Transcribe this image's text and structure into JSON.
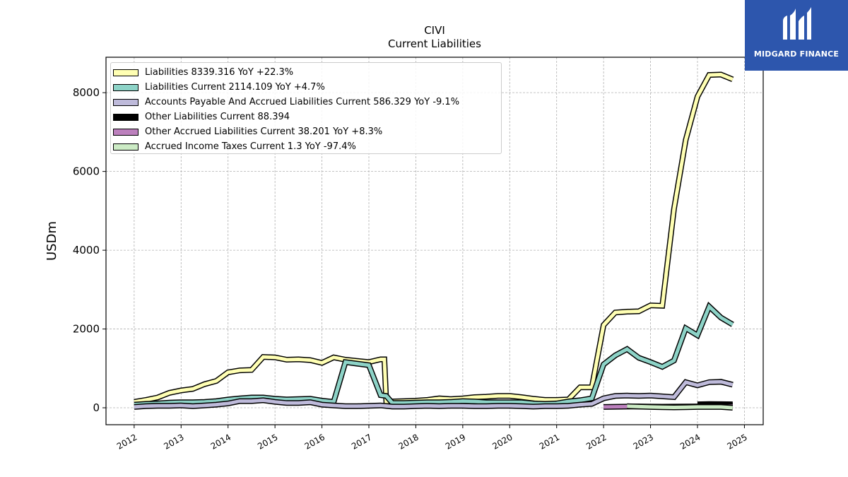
{
  "chart_data": {
    "type": "line",
    "title": "CIVI",
    "subtitle": "Current  Liabilities",
    "ylabel": "USDm",
    "xlim": [
      2011.4,
      2025.4
    ],
    "ylim": [
      -430,
      8900
    ],
    "x_ticks": [
      "2012",
      "2013",
      "2014",
      "2015",
      "2016",
      "2017",
      "2018",
      "2019",
      "2020",
      "2021",
      "2022",
      "2023",
      "2024",
      "2025"
    ],
    "y_ticks": [
      "0",
      "2000",
      "4000",
      "6000",
      "8000"
    ],
    "grid": true,
    "legend_position": "top-left",
    "series": [
      {
        "name": "Liabilities  8339.316 YoY +22.3%",
        "color": "#ffffb3",
        "x": [
          2012.0,
          2012.25,
          2012.5,
          2012.75,
          2013.0,
          2013.25,
          2013.5,
          2013.75,
          2014.0,
          2014.25,
          2014.5,
          2014.75,
          2015.0,
          2015.25,
          2015.5,
          2015.75,
          2016.0,
          2016.25,
          2016.5,
          2016.75,
          2017.0,
          2017.25,
          2017.33,
          2017.37,
          2017.5,
          2017.75,
          2018.0,
          2018.25,
          2018.5,
          2018.75,
          2019.0,
          2019.25,
          2019.5,
          2019.75,
          2020.0,
          2020.25,
          2020.5,
          2020.75,
          2021.0,
          2021.25,
          2021.5,
          2021.75,
          2022.0,
          2022.25,
          2022.5,
          2022.75,
          2023.0,
          2023.25,
          2023.5,
          2023.75,
          2024.0,
          2024.25,
          2024.5,
          2024.75
        ],
        "y": [
          150,
          200,
          260,
          380,
          440,
          480,
          600,
          680,
          900,
          950,
          960,
          1290,
          1280,
          1220,
          1230,
          1210,
          1140,
          1280,
          1220,
          1190,
          1160,
          1230,
          1230,
          160,
          160,
          170,
          180,
          200,
          240,
          220,
          240,
          270,
          280,
          300,
          300,
          270,
          230,
          200,
          200,
          210,
          520,
          520,
          2100,
          2420,
          2440,
          2450,
          2600,
          2590,
          5050,
          6800,
          7900,
          8450,
          8460,
          8339
        ]
      },
      {
        "name": "Liabilities Current  2114.109 YoY +4.7%",
        "color": "#8dd3c7",
        "x": [
          2012.0,
          2012.25,
          2012.5,
          2012.75,
          2013.0,
          2013.25,
          2013.5,
          2013.75,
          2014.0,
          2014.25,
          2014.5,
          2014.75,
          2015.0,
          2015.25,
          2015.5,
          2015.75,
          2016.0,
          2016.25,
          2016.5,
          2016.75,
          2017.0,
          2017.25,
          2017.37,
          2017.5,
          2017.75,
          2018.0,
          2018.25,
          2018.5,
          2018.75,
          2019.0,
          2019.25,
          2019.5,
          2019.75,
          2020.0,
          2020.25,
          2020.5,
          2020.75,
          2021.0,
          2021.25,
          2021.5,
          2021.75,
          2022.0,
          2022.25,
          2022.5,
          2022.75,
          2023.0,
          2023.25,
          2023.5,
          2023.75,
          2024.0,
          2024.25,
          2024.5,
          2024.75
        ],
        "y": [
          80,
          100,
          110,
          130,
          140,
          140,
          150,
          170,
          210,
          240,
          260,
          260,
          230,
          210,
          220,
          230,
          180,
          150,
          1160,
          1120,
          1080,
          320,
          300,
          120,
          120,
          130,
          140,
          140,
          150,
          170,
          160,
          140,
          140,
          140,
          140,
          110,
          100,
          110,
          160,
          190,
          240,
          1100,
          1330,
          1490,
          1270,
          1160,
          1040,
          1200,
          2020,
          1840,
          2570,
          2290,
          2114
        ]
      },
      {
        "name": "Accounts Payable And Accrued Liabilities Current  586.329 YoY -9.1%",
        "color": "#bebada",
        "x": [
          2012.0,
          2012.25,
          2012.5,
          2012.75,
          2013.0,
          2013.25,
          2013.5,
          2013.75,
          2014.0,
          2014.25,
          2014.5,
          2014.75,
          2015.0,
          2015.25,
          2015.5,
          2015.75,
          2016.0,
          2016.25,
          2016.5,
          2016.75,
          2017.0,
          2017.25,
          2017.5,
          2017.75,
          2018.0,
          2018.25,
          2018.5,
          2018.75,
          2019.0,
          2019.25,
          2019.5,
          2019.75,
          2020.0,
          2020.25,
          2020.5,
          2020.75,
          2021.0,
          2021.25,
          2021.5,
          2021.75,
          2022.0,
          2022.25,
          2022.5,
          2022.75,
          2023.0,
          2023.25,
          2023.5,
          2023.75,
          2024.0,
          2024.25,
          2024.5,
          2024.75
        ],
        "y": [
          20,
          40,
          50,
          50,
          60,
          40,
          60,
          80,
          110,
          170,
          170,
          190,
          150,
          120,
          120,
          140,
          80,
          60,
          40,
          40,
          50,
          60,
          30,
          30,
          40,
          50,
          40,
          50,
          50,
          40,
          40,
          50,
          50,
          40,
          30,
          40,
          40,
          50,
          80,
          100,
          240,
          300,
          310,
          300,
          310,
          290,
          270,
          650,
          570,
          650,
          660,
          586
        ]
      },
      {
        "name": "Other Liabilities Current  88.394",
        "color": "#000000",
        "x": [
          2024.0,
          2024.25,
          2024.5,
          2024.75
        ],
        "y": [
          88,
          95,
          92,
          88
        ]
      },
      {
        "name": "Other Accrued Liabilities Current  38.201 YoY +8.3%",
        "color": "#bc80bd",
        "x": [
          2022.0,
          2022.25,
          2022.5,
          2022.75,
          2023.0,
          2023.25,
          2023.5,
          2023.75,
          2024.0,
          2024.25,
          2024.5,
          2024.75
        ],
        "y": [
          20,
          25,
          30,
          35,
          30,
          28,
          30,
          32,
          35,
          36,
          37,
          38
        ]
      },
      {
        "name": "Accrued Income Taxes Current  1.3 YoY -97.4%",
        "color": "#ccebc5",
        "x": [
          2022.5,
          2022.75,
          2023.0,
          2023.25,
          2023.5,
          2023.75,
          2024.0,
          2024.25,
          2024.5,
          2024.75
        ],
        "y": [
          40,
          30,
          20,
          15,
          10,
          15,
          20,
          20,
          20,
          1.3
        ]
      }
    ]
  },
  "logo": {
    "name": "MIDGARD FINANCE"
  }
}
